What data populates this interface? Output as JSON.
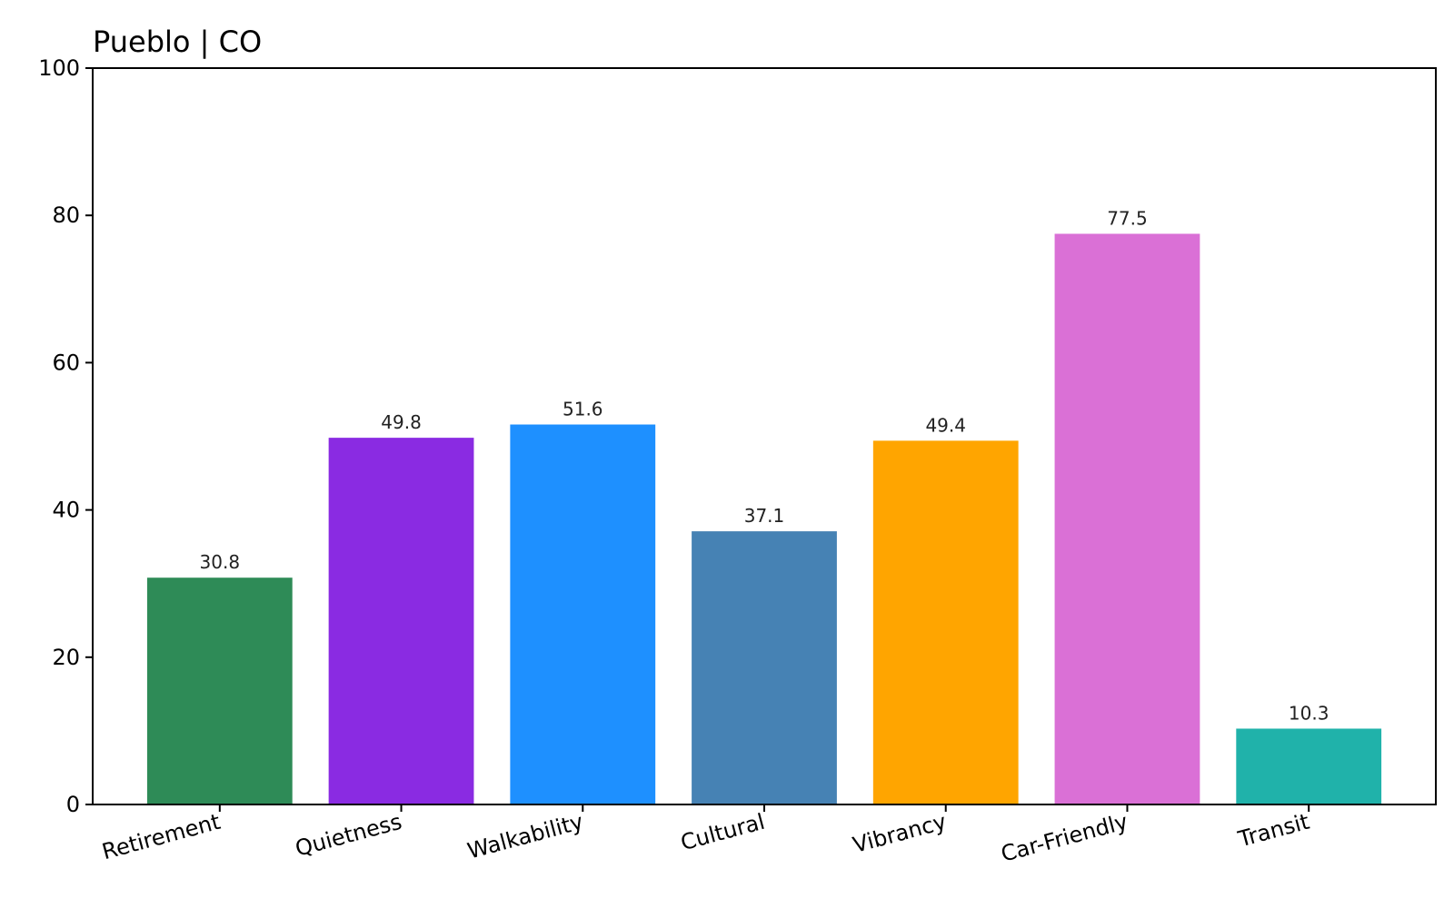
{
  "chart_data": {
    "type": "bar",
    "title": "Pueblo | CO",
    "xlabel": "",
    "ylabel": "",
    "categories": [
      "Retirement",
      "Quietness",
      "Walkability",
      "Cultural",
      "Vibrancy",
      "Car-Friendly",
      "Transit"
    ],
    "values": [
      30.8,
      49.8,
      51.6,
      37.1,
      49.4,
      77.5,
      10.3
    ],
    "data_labels": [
      "30.8",
      "49.8",
      "51.6",
      "37.1",
      "49.4",
      "77.5",
      "10.3"
    ],
    "colors": [
      "#2e8b57",
      "#8a2be2",
      "#1e90ff",
      "#4682b4",
      "#ffa500",
      "#da70d6",
      "#20b2aa"
    ],
    "ylim": [
      0,
      100
    ],
    "yticks": [
      0,
      20,
      40,
      60,
      80,
      100
    ],
    "ytick_labels": [
      "0",
      "20",
      "40",
      "60",
      "80",
      "100"
    ],
    "grid": false,
    "legend": "none"
  }
}
